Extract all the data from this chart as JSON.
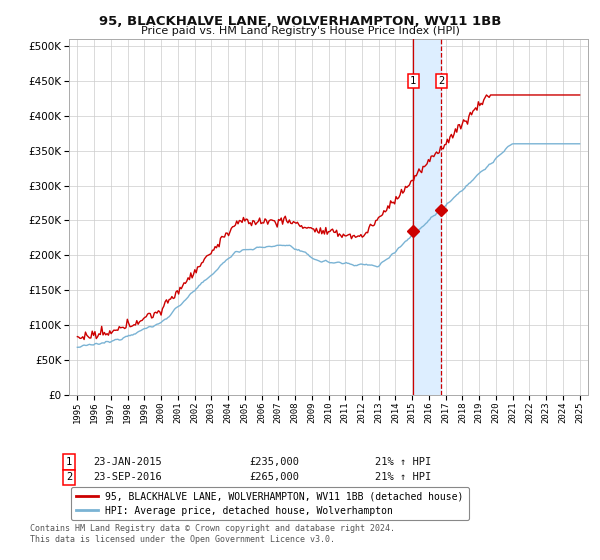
{
  "title": "95, BLACKHALVE LANE, WOLVERHAMPTON, WV11 1BB",
  "subtitle": "Price paid vs. HM Land Registry's House Price Index (HPI)",
  "legend_line1": "95, BLACKHALVE LANE, WOLVERHAMPTON, WV11 1BB (detached house)",
  "legend_line2": "HPI: Average price, detached house, Wolverhampton",
  "transaction1_label": "1",
  "transaction1_date": "23-JAN-2015",
  "transaction1_price": 235000,
  "transaction1_price_str": "£235,000",
  "transaction1_hpi": "21% ↑ HPI",
  "transaction2_label": "2",
  "transaction2_date": "23-SEP-2016",
  "transaction2_price": 265000,
  "transaction2_price_str": "£265,000",
  "transaction2_hpi": "21% ↑ HPI",
  "transaction1_x": 2015.06,
  "transaction2_x": 2016.73,
  "hpi_color": "#7ab3d4",
  "price_color": "#cc0000",
  "marker_color": "#cc0000",
  "highlight_color": "#ddeeff",
  "vline_color": "#cc0000",
  "grid_color": "#cccccc",
  "background_color": "#ffffff",
  "ylim": [
    0,
    510000
  ],
  "xlim": [
    1994.5,
    2025.5
  ],
  "footnote": "Contains HM Land Registry data © Crown copyright and database right 2024.\nThis data is licensed under the Open Government Licence v3.0."
}
